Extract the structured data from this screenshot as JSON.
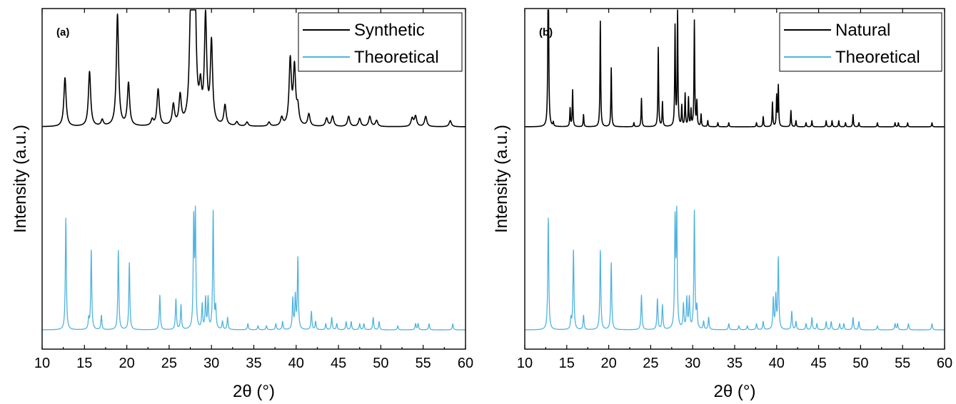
{
  "chart_data": [
    {
      "type": "line",
      "panel_label": "(a)",
      "xlabel": "2θ (°)",
      "ylabel": "Intensity (a.u.)",
      "xlim": [
        10,
        60
      ],
      "x_ticks": [
        10,
        15,
        20,
        25,
        30,
        35,
        40,
        45,
        50,
        55,
        60
      ],
      "y_tick_labels": false,
      "grid": false,
      "legend_position": "top-right",
      "series": [
        {
          "name": "Synthetic",
          "color": "#000000",
          "offset": 1.0,
          "baseline": 0.0,
          "peak_width": 0.16,
          "peaks": [
            [
              12.7,
              0.24
            ],
            [
              15.6,
              0.27
            ],
            [
              17.1,
              0.03
            ],
            [
              18.9,
              0.55
            ],
            [
              20.2,
              0.21
            ],
            [
              23.0,
              0.03
            ],
            [
              23.7,
              0.18
            ],
            [
              25.5,
              0.1
            ],
            [
              26.3,
              0.14
            ],
            [
              27.5,
              0.3
            ],
            [
              27.8,
              0.95
            ],
            [
              28.0,
              0.7
            ],
            [
              28.7,
              0.15
            ],
            [
              29.3,
              0.52
            ],
            [
              30.0,
              0.4
            ],
            [
              31.6,
              0.1
            ],
            [
              33.0,
              0.02
            ],
            [
              34.2,
              0.02
            ],
            [
              36.8,
              0.02
            ],
            [
              38.3,
              0.04
            ],
            [
              39.3,
              0.32
            ],
            [
              39.8,
              0.28
            ],
            [
              40.2,
              0.08
            ],
            [
              41.5,
              0.06
            ],
            [
              43.6,
              0.04
            ],
            [
              44.3,
              0.05
            ],
            [
              46.2,
              0.05
            ],
            [
              47.5,
              0.04
            ],
            [
              48.7,
              0.05
            ],
            [
              49.5,
              0.03
            ],
            [
              53.7,
              0.04
            ],
            [
              54.1,
              0.05
            ],
            [
              55.3,
              0.05
            ],
            [
              58.2,
              0.03
            ]
          ]
        },
        {
          "name": "Theoretical",
          "color": "#4FB3E0",
          "offset": 0.0,
          "peak_width": 0.07,
          "peaks": [
            [
              12.8,
              0.55
            ],
            [
              15.5,
              0.05
            ],
            [
              15.8,
              0.39
            ],
            [
              17.0,
              0.07
            ],
            [
              19.0,
              0.39
            ],
            [
              20.3,
              0.33
            ],
            [
              23.9,
              0.17
            ],
            [
              25.8,
              0.15
            ],
            [
              26.4,
              0.12
            ],
            [
              27.9,
              0.52
            ],
            [
              28.1,
              0.55
            ],
            [
              28.9,
              0.12
            ],
            [
              29.3,
              0.15
            ],
            [
              29.6,
              0.15
            ],
            [
              30.2,
              0.58
            ],
            [
              30.5,
              0.1
            ],
            [
              31.3,
              0.04
            ],
            [
              31.9,
              0.06
            ],
            [
              34.3,
              0.03
            ],
            [
              35.5,
              0.02
            ],
            [
              36.5,
              0.02
            ],
            [
              37.6,
              0.03
            ],
            [
              38.4,
              0.04
            ],
            [
              39.6,
              0.15
            ],
            [
              39.9,
              0.16
            ],
            [
              40.2,
              0.35
            ],
            [
              41.8,
              0.09
            ],
            [
              42.3,
              0.04
            ],
            [
              43.5,
              0.03
            ],
            [
              44.2,
              0.06
            ],
            [
              44.8,
              0.03
            ],
            [
              45.9,
              0.04
            ],
            [
              46.5,
              0.04
            ],
            [
              47.5,
              0.03
            ],
            [
              48.0,
              0.03
            ],
            [
              49.1,
              0.06
            ],
            [
              49.8,
              0.04
            ],
            [
              52.0,
              0.02
            ],
            [
              54.1,
              0.03
            ],
            [
              54.4,
              0.03
            ],
            [
              55.7,
              0.03
            ],
            [
              58.5,
              0.03
            ]
          ]
        }
      ]
    },
    {
      "type": "line",
      "panel_label": "(b)",
      "xlabel": "2θ (°)",
      "ylabel": "Intensity (a.u.)",
      "xlim": [
        10,
        60
      ],
      "x_ticks": [
        10,
        15,
        20,
        25,
        30,
        35,
        40,
        45,
        50,
        55,
        60
      ],
      "y_tick_labels": false,
      "grid": false,
      "legend_position": "top-right",
      "series": [
        {
          "name": "Natural",
          "color": "#000000",
          "offset": 1.0,
          "baseline": 0.0,
          "peak_width": 0.05,
          "peaks": [
            [
              12.8,
              1.09
            ],
            [
              13.4,
              0.02
            ],
            [
              15.4,
              0.09
            ],
            [
              15.7,
              0.18
            ],
            [
              17.0,
              0.06
            ],
            [
              19.0,
              0.52
            ],
            [
              20.3,
              0.29
            ],
            [
              23.0,
              0.02
            ],
            [
              23.9,
              0.14
            ],
            [
              25.9,
              0.39
            ],
            [
              26.4,
              0.12
            ],
            [
              27.9,
              0.49
            ],
            [
              28.2,
              0.57
            ],
            [
              28.7,
              0.1
            ],
            [
              29.1,
              0.16
            ],
            [
              29.5,
              0.14
            ],
            [
              29.8,
              0.08
            ],
            [
              30.2,
              0.52
            ],
            [
              30.5,
              0.12
            ],
            [
              31.0,
              0.06
            ],
            [
              31.8,
              0.03
            ],
            [
              33.0,
              0.02
            ],
            [
              34.3,
              0.02
            ],
            [
              37.6,
              0.02
            ],
            [
              38.4,
              0.05
            ],
            [
              39.5,
              0.12
            ],
            [
              40.0,
              0.15
            ],
            [
              40.2,
              0.2
            ],
            [
              41.7,
              0.08
            ],
            [
              42.3,
              0.03
            ],
            [
              43.5,
              0.02
            ],
            [
              44.2,
              0.03
            ],
            [
              45.9,
              0.03
            ],
            [
              46.6,
              0.03
            ],
            [
              47.4,
              0.03
            ],
            [
              48.2,
              0.02
            ],
            [
              49.1,
              0.06
            ],
            [
              49.8,
              0.02
            ],
            [
              52.0,
              0.02
            ],
            [
              54.1,
              0.02
            ],
            [
              54.5,
              0.02
            ],
            [
              55.6,
              0.02
            ],
            [
              58.5,
              0.02
            ]
          ]
        },
        {
          "name": "Theoretical",
          "color": "#4FB3E0",
          "offset": 0.0,
          "peak_width": 0.07,
          "peaks": [
            [
              12.8,
              0.55
            ],
            [
              15.5,
              0.05
            ],
            [
              15.8,
              0.39
            ],
            [
              17.0,
              0.07
            ],
            [
              19.0,
              0.39
            ],
            [
              20.3,
              0.33
            ],
            [
              23.9,
              0.17
            ],
            [
              25.8,
              0.15
            ],
            [
              26.4,
              0.12
            ],
            [
              27.9,
              0.52
            ],
            [
              28.1,
              0.55
            ],
            [
              28.9,
              0.12
            ],
            [
              29.3,
              0.15
            ],
            [
              29.6,
              0.15
            ],
            [
              30.2,
              0.58
            ],
            [
              30.5,
              0.1
            ],
            [
              31.3,
              0.04
            ],
            [
              31.9,
              0.06
            ],
            [
              34.3,
              0.03
            ],
            [
              35.5,
              0.02
            ],
            [
              36.5,
              0.02
            ],
            [
              37.6,
              0.03
            ],
            [
              38.4,
              0.04
            ],
            [
              39.6,
              0.15
            ],
            [
              39.9,
              0.16
            ],
            [
              40.2,
              0.35
            ],
            [
              41.8,
              0.09
            ],
            [
              42.3,
              0.04
            ],
            [
              43.5,
              0.03
            ],
            [
              44.2,
              0.06
            ],
            [
              44.8,
              0.03
            ],
            [
              45.9,
              0.04
            ],
            [
              46.5,
              0.04
            ],
            [
              47.5,
              0.03
            ],
            [
              48.0,
              0.03
            ],
            [
              49.1,
              0.06
            ],
            [
              49.8,
              0.04
            ],
            [
              52.0,
              0.02
            ],
            [
              54.1,
              0.03
            ],
            [
              54.4,
              0.03
            ],
            [
              55.7,
              0.03
            ],
            [
              58.5,
              0.03
            ]
          ]
        }
      ]
    }
  ]
}
